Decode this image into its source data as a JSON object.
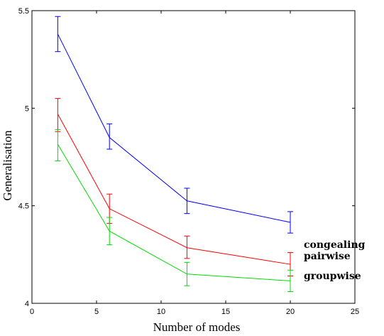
{
  "chart_data": {
    "type": "line",
    "xlabel": "Number of modes",
    "ylabel": "Generalisation",
    "xlim": [
      0,
      25
    ],
    "ylim": [
      4,
      5.5
    ],
    "xticks": [
      0,
      5,
      10,
      15,
      20,
      25
    ],
    "yticks": [
      4,
      4.5,
      5,
      5.5
    ],
    "ytick_labels": [
      "4",
      "4.5",
      "5",
      "5.5"
    ],
    "grid": false,
    "legend_placement": "right of plot, beside line ends",
    "x": [
      2,
      6,
      12,
      20
    ],
    "series": [
      {
        "name": "congealing",
        "color": "#0000ff",
        "values": [
          5.38,
          4.85,
          4.525,
          4.415
        ],
        "err_low": [
          5.29,
          4.79,
          4.46,
          4.36
        ],
        "err_high": [
          5.47,
          4.92,
          4.59,
          4.47
        ]
      },
      {
        "name": "pairwise",
        "color": "#ff0000",
        "values": [
          4.97,
          4.485,
          4.285,
          4.2
        ],
        "err_low": [
          4.88,
          4.41,
          4.23,
          4.14
        ],
        "err_high": [
          5.05,
          4.56,
          4.345,
          4.26
        ]
      },
      {
        "name": "groupwise",
        "color": "#00dd00",
        "values": [
          4.815,
          4.37,
          4.15,
          4.115
        ],
        "err_low": [
          4.73,
          4.3,
          4.09,
          4.06
        ],
        "err_high": [
          4.89,
          4.44,
          4.21,
          4.17
        ]
      }
    ]
  }
}
